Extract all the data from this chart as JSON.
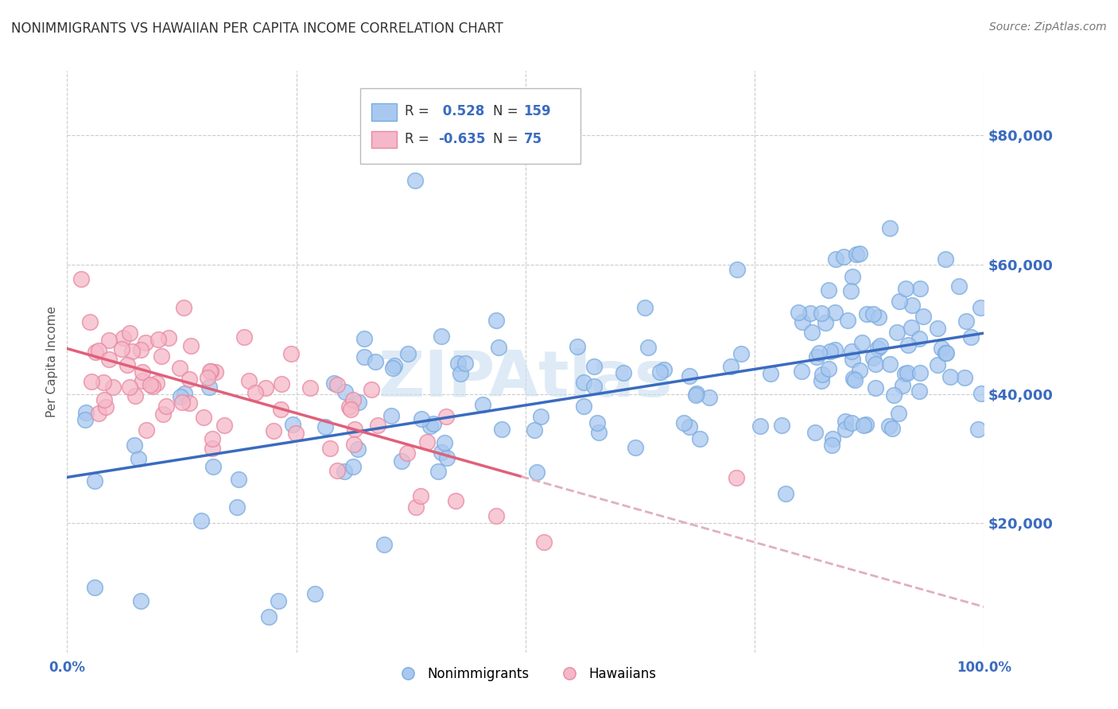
{
  "title": "NONIMMIGRANTS VS HAWAIIAN PER CAPITA INCOME CORRELATION CHART",
  "source": "Source: ZipAtlas.com",
  "ylabel": "Per Capita Income",
  "ytick_values": [
    20000,
    40000,
    60000,
    80000
  ],
  "blue_R": 0.528,
  "blue_N": 159,
  "pink_R": -0.635,
  "pink_N": 75,
  "blue_dot_color": "#a8c8f0",
  "blue_dot_edge": "#7aabde",
  "pink_dot_color": "#f5b8c8",
  "pink_dot_edge": "#e888a0",
  "blue_line_color": "#3a6bbf",
  "pink_line_color": "#e0607a",
  "pink_line_dashed_color": "#e0b0bb",
  "watermark_color": "#c8dff0",
  "xlim": [
    0.0,
    1.0
  ],
  "ylim": [
    0,
    90000
  ],
  "blue_scatter_seed": 42,
  "pink_scatter_seed": 99
}
